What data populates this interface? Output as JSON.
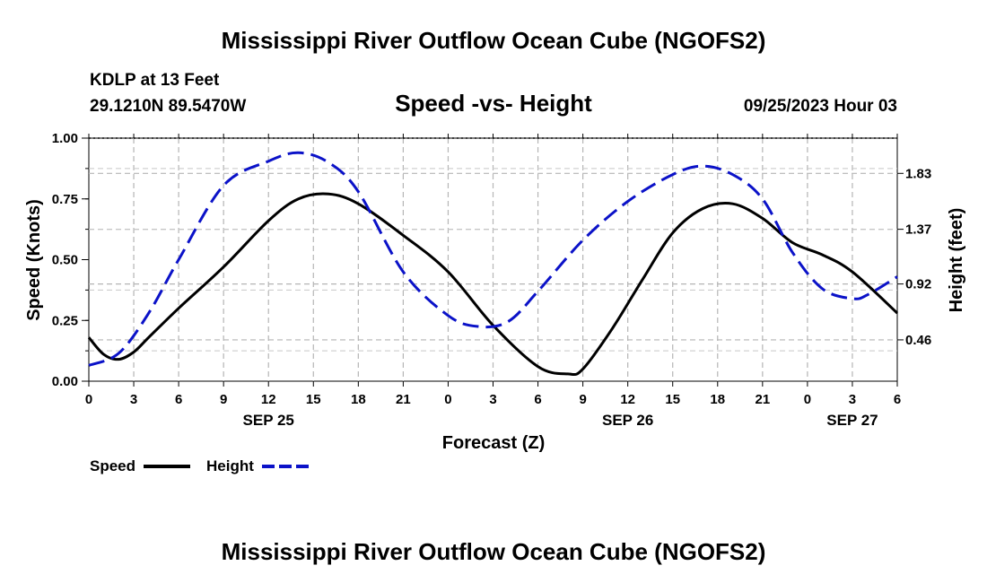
{
  "page": {
    "title_top": "Mississippi River Outflow Ocean Cube (NGOFS2)",
    "title_bottom": "Mississippi River Outflow Ocean Cube (NGOFS2)",
    "station": "KDLP at 13 Feet",
    "coords": "29.1210N  89.5470W",
    "run_time": "09/25/2023 Hour 03"
  },
  "chart_data": {
    "type": "line",
    "title": "Speed -vs- Height",
    "xlabel": "Forecast (Z)",
    "ylabel_left": "Speed (Knots)",
    "ylabel_right": "Height (feet)",
    "x_hours_range": [
      0,
      54
    ],
    "x_tick_labels": [
      "0",
      "3",
      "6",
      "9",
      "12",
      "15",
      "18",
      "21",
      "0",
      "3",
      "6",
      "9",
      "12",
      "15",
      "18",
      "21",
      "0",
      "3",
      "6"
    ],
    "date_labels": [
      {
        "label": "SEP 25",
        "hour": 12
      },
      {
        "label": "SEP 26",
        "hour": 36
      },
      {
        "label": "SEP 27",
        "hour": 51
      }
    ],
    "ylim_left": [
      0,
      1.0
    ],
    "y_left_ticks": [
      "0.00",
      "0.25",
      "0.50",
      "0.75",
      "1.00"
    ],
    "ylim_right": [
      0.12,
      2.12
    ],
    "y_right_ticks": [
      "0.46",
      "0.92",
      "1.37",
      "1.83"
    ],
    "grid": true,
    "legend_position": "bottom-left",
    "series": [
      {
        "name": "Speed",
        "axis": "left",
        "color": "#000000",
        "dash": "solid",
        "x": [
          0,
          1,
          2,
          3,
          4,
          6,
          9,
          12,
          14,
          16,
          18,
          21,
          24,
          27,
          30,
          32,
          33,
          35,
          37,
          39,
          41,
          43,
          45,
          47,
          49,
          51,
          54
        ],
        "y": [
          0.18,
          0.11,
          0.09,
          0.12,
          0.18,
          0.3,
          0.47,
          0.66,
          0.75,
          0.77,
          0.73,
          0.6,
          0.45,
          0.23,
          0.06,
          0.03,
          0.05,
          0.22,
          0.42,
          0.61,
          0.71,
          0.73,
          0.67,
          0.57,
          0.52,
          0.45,
          0.28
        ]
      },
      {
        "name": "Height",
        "axis": "right",
        "color": "#0b12c8",
        "dash": "dashed",
        "x": [
          0,
          2,
          4,
          6,
          9,
          12,
          14,
          16,
          18,
          21,
          24,
          26,
          28,
          30,
          33,
          36,
          39,
          41,
          43,
          45,
          47,
          49,
          51,
          52,
          54
        ],
        "y": [
          0.25,
          0.35,
          0.68,
          1.12,
          1.73,
          1.93,
          2.0,
          1.92,
          1.68,
          1.02,
          0.66,
          0.57,
          0.61,
          0.86,
          1.28,
          1.6,
          1.82,
          1.89,
          1.82,
          1.62,
          1.18,
          0.88,
          0.8,
          0.83,
          0.98
        ]
      }
    ]
  }
}
